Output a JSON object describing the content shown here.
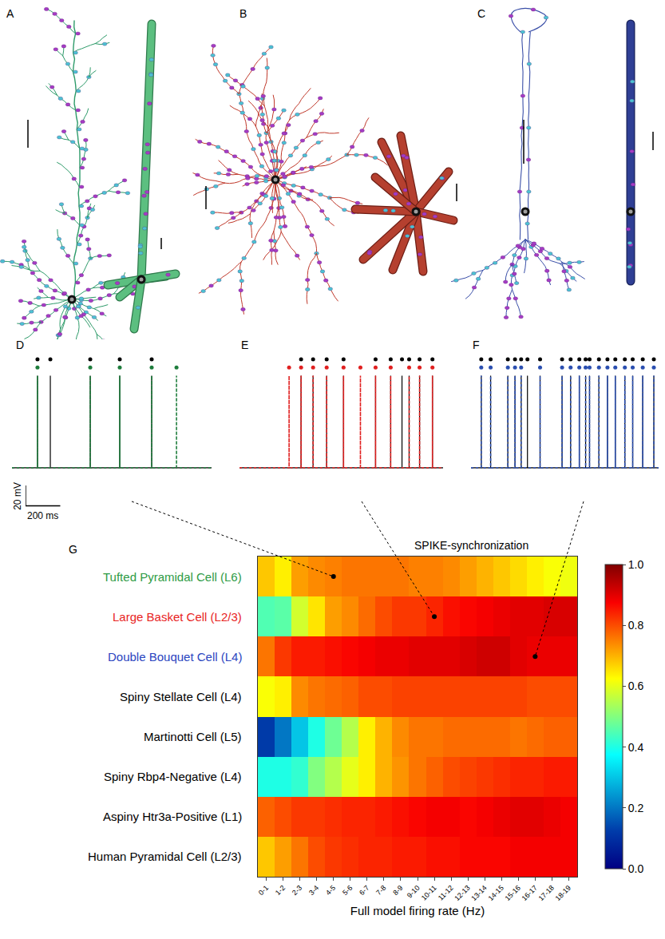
{
  "morphology_panels": [
    {
      "letter": "A"
    },
    {
      "letter": "B"
    },
    {
      "letter": "C"
    }
  ],
  "chart_data": [
    {
      "type": "spike_trace",
      "panel": "D",
      "xlim": [
        0,
        1150
      ],
      "ylim": [
        -80,
        45
      ],
      "tick_labels": false,
      "rest": -65,
      "peak": 25,
      "series": [
        {
          "color": "#000000",
          "line_style": "solid",
          "spike_times": [
            147,
            221,
            451,
            621,
            805
          ]
        },
        {
          "color": "#1e7d3c",
          "line_style": "dotted",
          "spike_times": [
            147,
            451,
            621,
            805,
            948
          ]
        }
      ],
      "scale_bar": {
        "y": 20,
        "y_label": "20 mV",
        "x": 200,
        "x_label": "200 ms"
      },
      "cell": {
        "row": "Tufted Pyramidal Cell (L6)",
        "category": "4-5"
      }
    },
    {
      "type": "spike_trace",
      "panel": "E",
      "xlim": [
        0,
        1170
      ],
      "ylim": [
        -80,
        45
      ],
      "tick_labels": false,
      "rest": -65,
      "peak": 25,
      "series": [
        {
          "color": "#000000",
          "line_style": "solid",
          "spike_times": [
            354,
            423,
            501,
            598,
            782,
            869,
            934,
            975,
            1035,
            1109
          ]
        },
        {
          "color": "#e02020",
          "line_style": "dotted",
          "spike_times": [
            285,
            354,
            423,
            501,
            598,
            695,
            782,
            869,
            975,
            1035,
            1109
          ]
        }
      ],
      "cell": {
        "row": "Large Basket Cell (L2/3)",
        "category": "10-11"
      }
    },
    {
      "type": "spike_trace",
      "panel": "F",
      "xlim": [
        0,
        1100
      ],
      "ylim": [
        -80,
        45
      ],
      "tick_labels": false,
      "rest": -65,
      "peak": 25,
      "series": [
        {
          "color": "#000000",
          "line_style": "solid",
          "spike_times": [
            60,
            115,
            216,
            258,
            294,
            331,
            405,
            534,
            584,
            635,
            672,
            695,
            750,
            800,
            846,
            902,
            948,
            1007,
            1072
          ]
        },
        {
          "color": "#2b4fb0",
          "line_style": "dotted",
          "spike_times": [
            60,
            115,
            216,
            258,
            294,
            405,
            534,
            584,
            635,
            672,
            695,
            750,
            800,
            846,
            902,
            948,
            1007,
            1072
          ]
        }
      ],
      "cell": {
        "row": "Double Bouquet Cell (L4)",
        "category": "16-17"
      }
    },
    {
      "type": "heatmap",
      "panel": "G",
      "title": "SPIKE-synchronization",
      "x_label": "Full model firing rate (Hz)",
      "categories": [
        "0-1",
        "1-2",
        "2-3",
        "3-4",
        "4-5",
        "5-6",
        "6-7",
        "7-8",
        "8-9",
        "9-10",
        "10-11",
        "11-12",
        "12-13",
        "13-14",
        "14-15",
        "15-16",
        "16-17",
        "17-18",
        "18-19"
      ],
      "rows": [
        {
          "label": "Tufted Pyramidal Cell (L6)",
          "color": "#2e9b45",
          "values": [
            0.68,
            0.64,
            0.72,
            0.74,
            0.75,
            0.76,
            0.76,
            0.76,
            0.76,
            0.75,
            0.75,
            0.74,
            0.72,
            0.7,
            0.68,
            0.66,
            0.64,
            0.62,
            0.61
          ]
        },
        {
          "label": "Large Basket Cell (L2/3)",
          "color": "#e8241f",
          "values": [
            0.45,
            0.46,
            0.58,
            0.65,
            0.72,
            0.74,
            0.77,
            0.8,
            0.82,
            0.82,
            0.84,
            0.86,
            0.87,
            0.88,
            0.89,
            0.9,
            0.9,
            0.91,
            0.91
          ]
        },
        {
          "label": "Double Bouquet Cell (L4)",
          "color": "#2b45c0",
          "values": [
            0.76,
            0.82,
            0.85,
            0.85,
            0.86,
            0.87,
            0.88,
            0.89,
            0.89,
            0.9,
            0.9,
            0.9,
            0.91,
            0.92,
            0.92,
            0.9,
            0.89,
            0.89,
            0.89
          ]
        },
        {
          "label": "Spiny Stellate Cell (L4)",
          "color": "#000000",
          "values": [
            0.62,
            0.64,
            0.74,
            0.76,
            0.77,
            0.78,
            0.8,
            0.8,
            0.81,
            0.81,
            0.81,
            0.81,
            0.81,
            0.81,
            0.81,
            0.81,
            0.8,
            0.8,
            0.8
          ]
        },
        {
          "label": "Martinotti Cell (L5)",
          "color": "#000000",
          "values": [
            0.12,
            0.2,
            0.3,
            0.4,
            0.48,
            0.55,
            0.64,
            0.7,
            0.74,
            0.76,
            0.76,
            0.77,
            0.77,
            0.77,
            0.77,
            0.76,
            0.77,
            0.78,
            0.78
          ]
        },
        {
          "label": "Spiny Rbp4-Negative (L4)",
          "color": "#000000",
          "values": [
            0.4,
            0.4,
            0.42,
            0.5,
            0.55,
            0.6,
            0.64,
            0.7,
            0.73,
            0.76,
            0.78,
            0.8,
            0.81,
            0.82,
            0.83,
            0.84,
            0.84,
            0.85,
            0.85
          ]
        },
        {
          "label": "Aspiny Htr3a-Positive (L1)",
          "color": "#000000",
          "values": [
            0.78,
            0.8,
            0.82,
            0.82,
            0.83,
            0.84,
            0.84,
            0.85,
            0.86,
            0.87,
            0.88,
            0.88,
            0.87,
            0.88,
            0.89,
            0.9,
            0.9,
            0.89,
            0.88
          ]
        },
        {
          "label": "Human Pyramidal Cell (L2/3)",
          "color": "#000000",
          "values": [
            0.68,
            0.72,
            0.76,
            0.8,
            0.82,
            0.83,
            0.84,
            0.84,
            0.85,
            0.85,
            0.86,
            0.86,
            0.87,
            0.87,
            0.87,
            0.88,
            0.88,
            0.88,
            0.88
          ]
        }
      ],
      "zlim": [
        0,
        1
      ],
      "zticks": [
        {
          "value": 0,
          "label": "0.0"
        },
        0.2,
        0.4,
        0.6,
        0.8,
        {
          "value": 1,
          "label": "1.0"
        }
      ],
      "color": "Jet"
    }
  ]
}
